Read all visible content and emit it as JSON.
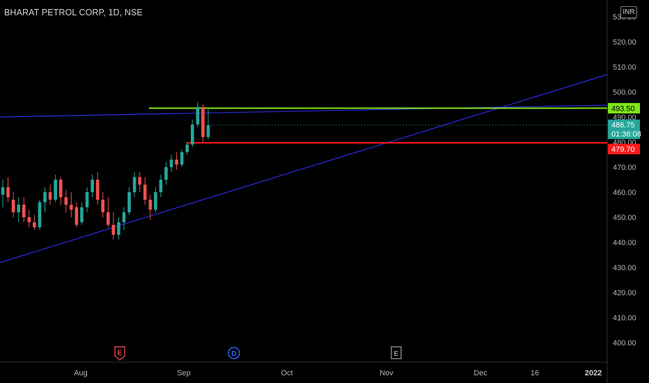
{
  "header": {
    "symbol_title": "BHARAT PETROL CORP, 1D, NSE",
    "currency": "INR"
  },
  "colors": {
    "background": "#000000",
    "up": "#26a69a",
    "down": "#ef5350",
    "trendline": "#2a2ee0",
    "support": "#ff1a1a",
    "resistance": "#7fe61a",
    "last_price": "#26a69a"
  },
  "chart_data": {
    "type": "candlestick",
    "symbol": "BHARAT PETROL CORP",
    "interval": "1D",
    "exchange": "NSE",
    "y_range": [
      395,
      539
    ],
    "y_ticks": [
      "400.00",
      "410.00",
      "420.00",
      "430.00",
      "440.00",
      "450.00",
      "460.00",
      "470.00",
      "480.00",
      "490.00",
      "500.00",
      "510.00",
      "520.00",
      "530.00"
    ],
    "x_ticks": [
      "Aug",
      "Sep",
      "Oct",
      "Nov",
      "Dec",
      "16",
      "2022"
    ],
    "candles": [
      {
        "o": 459,
        "h": 465,
        "l": 454,
        "c": 462
      },
      {
        "o": 462,
        "h": 466,
        "l": 456,
        "c": 458
      },
      {
        "o": 457,
        "h": 460,
        "l": 450,
        "c": 452
      },
      {
        "o": 452,
        "h": 458,
        "l": 448,
        "c": 455
      },
      {
        "o": 455,
        "h": 458,
        "l": 448,
        "c": 450
      },
      {
        "o": 450,
        "h": 453,
        "l": 446,
        "c": 448
      },
      {
        "o": 448,
        "h": 451,
        "l": 445,
        "c": 446
      },
      {
        "o": 446,
        "h": 457,
        "l": 445,
        "c": 456
      },
      {
        "o": 456,
        "h": 462,
        "l": 452,
        "c": 460
      },
      {
        "o": 460,
        "h": 463,
        "l": 455,
        "c": 457
      },
      {
        "o": 457,
        "h": 467,
        "l": 456,
        "c": 465
      },
      {
        "o": 465,
        "h": 466,
        "l": 455,
        "c": 458
      },
      {
        "o": 458,
        "h": 461,
        "l": 452,
        "c": 455
      },
      {
        "o": 455,
        "h": 460,
        "l": 450,
        "c": 453
      },
      {
        "o": 454,
        "h": 456,
        "l": 446,
        "c": 447
      },
      {
        "o": 448,
        "h": 456,
        "l": 447,
        "c": 454
      },
      {
        "o": 454,
        "h": 462,
        "l": 452,
        "c": 460
      },
      {
        "o": 460,
        "h": 467,
        "l": 458,
        "c": 465
      },
      {
        "o": 465,
        "h": 468,
        "l": 455,
        "c": 457
      },
      {
        "o": 457,
        "h": 460,
        "l": 450,
        "c": 452
      },
      {
        "o": 452,
        "h": 458,
        "l": 446,
        "c": 447
      },
      {
        "o": 447,
        "h": 452,
        "l": 441,
        "c": 443
      },
      {
        "o": 443,
        "h": 450,
        "l": 441,
        "c": 448
      },
      {
        "o": 448,
        "h": 454,
        "l": 445,
        "c": 452
      },
      {
        "o": 452,
        "h": 462,
        "l": 451,
        "c": 460
      },
      {
        "o": 460,
        "h": 468,
        "l": 458,
        "c": 466
      },
      {
        "o": 466,
        "h": 468,
        "l": 460,
        "c": 463
      },
      {
        "o": 463,
        "h": 466,
        "l": 455,
        "c": 457
      },
      {
        "o": 457,
        "h": 459,
        "l": 449,
        "c": 453
      },
      {
        "o": 453,
        "h": 462,
        "l": 452,
        "c": 460
      },
      {
        "o": 460,
        "h": 467,
        "l": 458,
        "c": 465
      },
      {
        "o": 465,
        "h": 472,
        "l": 463,
        "c": 470
      },
      {
        "o": 470,
        "h": 475,
        "l": 468,
        "c": 473
      },
      {
        "o": 473,
        "h": 476,
        "l": 469,
        "c": 471
      },
      {
        "o": 471,
        "h": 477,
        "l": 470,
        "c": 476
      },
      {
        "o": 476,
        "h": 480,
        "l": 475,
        "c": 479
      },
      {
        "o": 479,
        "h": 489,
        "l": 478,
        "c": 487
      },
      {
        "o": 487,
        "h": 496,
        "l": 486,
        "c": 494
      },
      {
        "o": 494,
        "h": 495,
        "l": 480,
        "c": 482
      },
      {
        "o": 482,
        "h": 493,
        "l": 481,
        "c": 486.75
      }
    ],
    "drawings": {
      "resistance_level": 493.5,
      "support_level": 479.7
    },
    "price_labels": {
      "resistance": "493.50",
      "support": "479.70",
      "last_price": "486.75",
      "countdown": "01:36:08"
    },
    "event_markers": [
      "E",
      "D",
      "E"
    ]
  }
}
